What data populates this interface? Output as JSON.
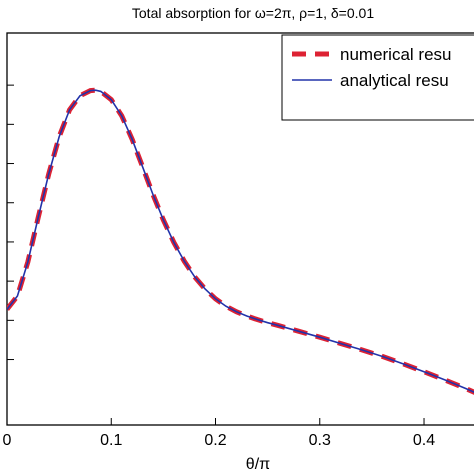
{
  "chart_data": {
    "type": "line",
    "title": "Total absorption for ω=2π, ρ=1, δ=0.01",
    "xlabel": "θ/π",
    "ylabel": "",
    "xlim": [
      0,
      0.47
    ],
    "x_ticks": [
      0,
      0.1,
      0.2,
      0.3,
      0.4
    ],
    "x_tick_labels": [
      "0",
      "0.1",
      "0.2",
      "0.3",
      "0.4"
    ],
    "ylim": [
      0,
      1
    ],
    "y_ticks": [
      0.167,
      0.267,
      0.367,
      0.467,
      0.567,
      0.667,
      0.767,
      0.867
    ],
    "grid": false,
    "legend_placement": "top-right",
    "series": [
      {
        "name": "numerical resu",
        "style": "dashed",
        "color": "#dd2233",
        "x": [
          0.0,
          0.01,
          0.02,
          0.03,
          0.04,
          0.05,
          0.06,
          0.07,
          0.08,
          0.085,
          0.09,
          0.1,
          0.11,
          0.12,
          0.13,
          0.14,
          0.15,
          0.16,
          0.17,
          0.18,
          0.19,
          0.2,
          0.21,
          0.22,
          0.23,
          0.24,
          0.25,
          0.26,
          0.28,
          0.3,
          0.32,
          0.34,
          0.36,
          0.38,
          0.4,
          0.42,
          0.44,
          0.46,
          0.47
        ],
        "y": [
          0.295,
          0.329,
          0.416,
          0.53,
          0.64,
          0.735,
          0.804,
          0.84,
          0.853,
          0.854,
          0.851,
          0.83,
          0.789,
          0.729,
          0.659,
          0.588,
          0.523,
          0.466,
          0.418,
          0.378,
          0.347,
          0.322,
          0.303,
          0.289,
          0.278,
          0.269,
          0.261,
          0.254,
          0.239,
          0.224,
          0.208,
          0.192,
          0.175,
          0.156,
          0.136,
          0.115,
          0.093,
          0.07,
          0.058
        ]
      },
      {
        "name": "analytical resu",
        "style": "solid",
        "color": "#2233aa",
        "x": [
          0.0,
          0.01,
          0.02,
          0.03,
          0.04,
          0.05,
          0.06,
          0.07,
          0.08,
          0.085,
          0.09,
          0.1,
          0.11,
          0.12,
          0.13,
          0.14,
          0.15,
          0.16,
          0.17,
          0.18,
          0.19,
          0.2,
          0.21,
          0.22,
          0.23,
          0.24,
          0.25,
          0.26,
          0.28,
          0.3,
          0.32,
          0.34,
          0.36,
          0.38,
          0.4,
          0.42,
          0.44,
          0.46,
          0.47
        ],
        "y": [
          0.295,
          0.329,
          0.416,
          0.53,
          0.64,
          0.735,
          0.804,
          0.84,
          0.853,
          0.854,
          0.851,
          0.83,
          0.789,
          0.729,
          0.659,
          0.588,
          0.523,
          0.466,
          0.418,
          0.378,
          0.347,
          0.322,
          0.303,
          0.289,
          0.278,
          0.269,
          0.261,
          0.254,
          0.239,
          0.224,
          0.208,
          0.192,
          0.175,
          0.156,
          0.136,
          0.115,
          0.093,
          0.07,
          0.058
        ]
      }
    ]
  }
}
